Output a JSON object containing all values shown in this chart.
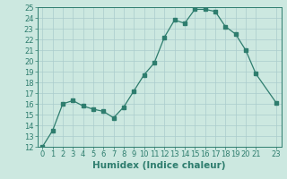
{
  "x": [
    0,
    1,
    2,
    3,
    4,
    5,
    6,
    7,
    8,
    9,
    10,
    11,
    12,
    13,
    14,
    15,
    16,
    17,
    18,
    19,
    20,
    21,
    23
  ],
  "y": [
    12,
    13.5,
    16,
    16.3,
    15.8,
    15.5,
    15.3,
    14.7,
    15.7,
    17.2,
    18.7,
    19.8,
    22.2,
    23.8,
    23.5,
    24.8,
    24.8,
    24.6,
    23.2,
    22.5,
    21.0,
    18.8,
    16.1
  ],
  "xlabel": "Humidex (Indice chaleur)",
  "xlim": [
    -0.5,
    23.5
  ],
  "ylim": [
    12,
    25
  ],
  "yticks": [
    12,
    13,
    14,
    15,
    16,
    17,
    18,
    19,
    20,
    21,
    22,
    23,
    24,
    25
  ],
  "xticks": [
    0,
    1,
    2,
    3,
    4,
    5,
    6,
    7,
    8,
    9,
    10,
    11,
    12,
    13,
    14,
    15,
    16,
    17,
    18,
    19,
    20,
    21,
    23
  ],
  "line_color": "#2e7d6e",
  "marker": "s",
  "marker_size": 2.2,
  "bg_color": "#cce8e0",
  "grid_color": "#aacccc",
  "label_fontsize": 7.5,
  "tick_fontsize": 6.0
}
